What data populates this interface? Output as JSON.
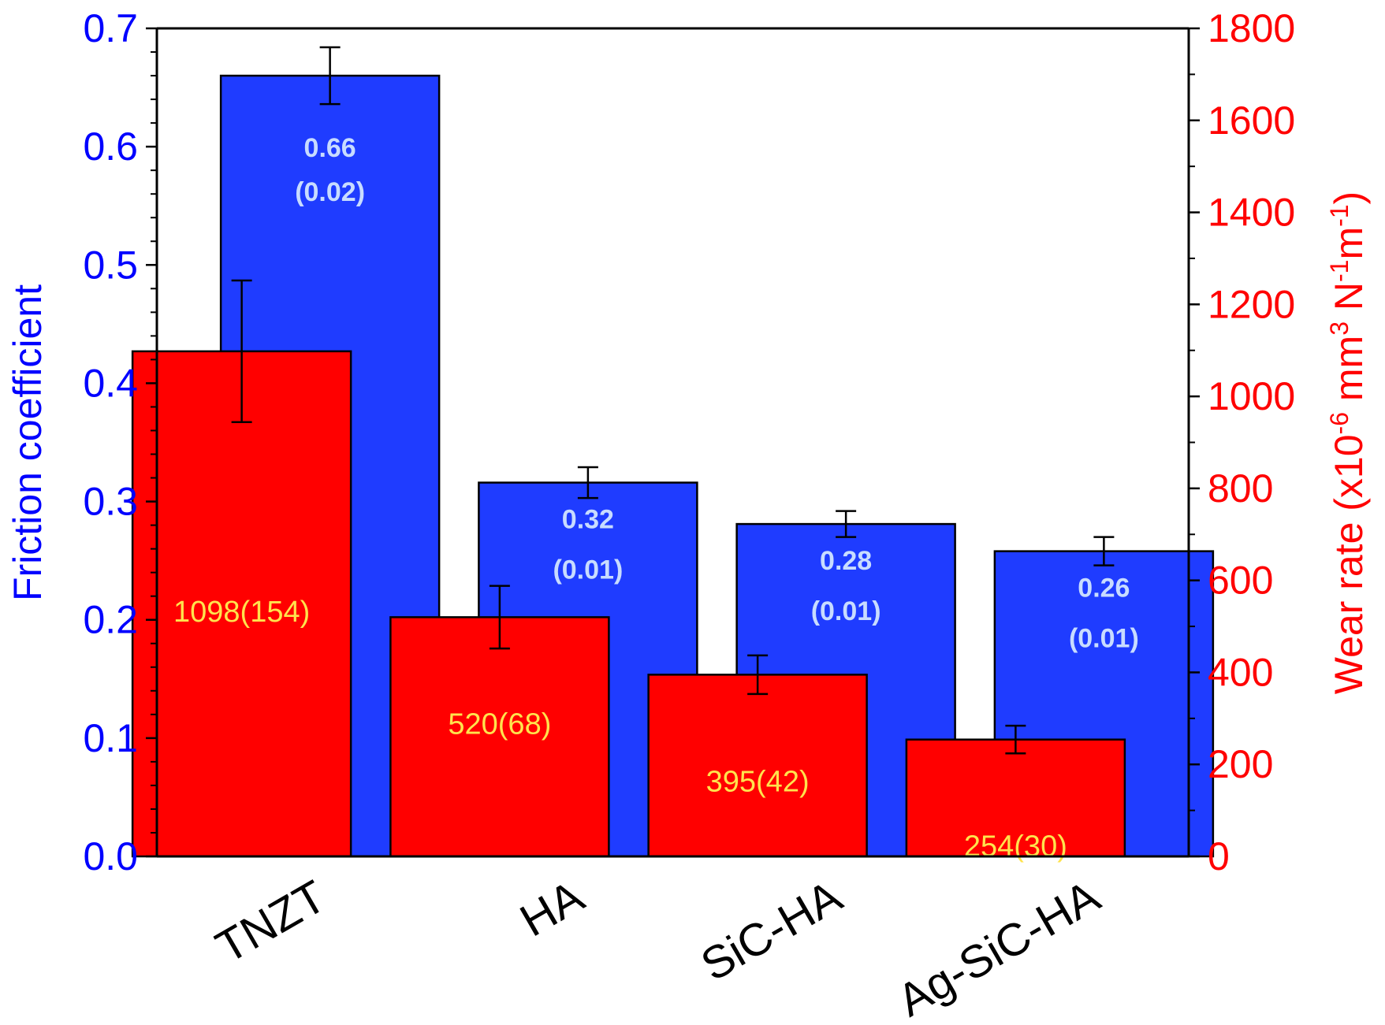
{
  "chart_data": {
    "type": "bar",
    "categories": [
      "TNZT",
      "HA",
      "SiC-HA",
      "Ag-SiC-HA"
    ],
    "left_axis": {
      "label": "Friction coefficient",
      "ylim": [
        0,
        0.7
      ],
      "ticks": [
        "0.0",
        "0.1",
        "0.2",
        "0.3",
        "0.4",
        "0.5",
        "0.6",
        "0.7"
      ],
      "color": "#0000ff"
    },
    "right_axis": {
      "label": "Wear rate (x10⁻⁶ mm³ N⁻¹m⁻¹)",
      "ylim": [
        0,
        1800
      ],
      "ticks": [
        "0",
        "200",
        "400",
        "600",
        "800",
        "1000",
        "1200",
        "1400",
        "1600",
        "1800"
      ],
      "color": "#ff0000"
    },
    "series": [
      {
        "axis": "left",
        "color": "#1f3cff",
        "values": [
          0.66,
          0.316,
          0.281,
          0.258
        ],
        "errors": [
          0.024,
          0.013,
          0.011,
          0.012
        ],
        "labels": [
          [
            "0.66",
            "(0.02)"
          ],
          [
            "0.32",
            "(0.01)"
          ],
          [
            "0.28",
            "(0.01)"
          ],
          [
            "0.26",
            "(0.01)"
          ]
        ],
        "label_color": "#c8dcff"
      },
      {
        "axis": "right",
        "color": "#ff0000",
        "values": [
          1098,
          520,
          395,
          254
        ],
        "errors": [
          154,
          68,
          42,
          30
        ],
        "labels": [
          "1098(154)",
          "520(68)",
          "395(42)",
          "254(30)"
        ],
        "label_color": "#ffe34d"
      }
    ],
    "grid": false
  }
}
